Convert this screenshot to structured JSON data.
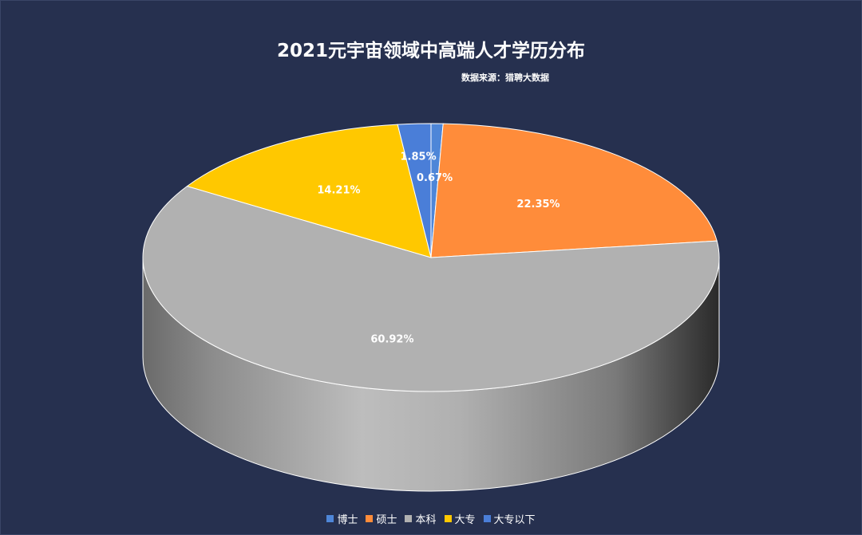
{
  "chart_data": {
    "type": "pie",
    "title": "2021元宇宙领域中高端人才学历分布",
    "subtitle": "数据来源：猎聘大数据",
    "categories": [
      "博士",
      "硕士",
      "本科",
      "大专",
      "大专以下"
    ],
    "values": [
      0.67,
      22.35,
      60.92,
      14.21,
      1.85
    ],
    "value_labels": [
      "0.67%",
      "22.35%",
      "60.92%",
      "14.21%",
      "1.85%"
    ],
    "colors": [
      "#4e86d8",
      "#ff8c3a",
      "#b1b1b1",
      "#ffc800",
      "#4a7ed8"
    ],
    "legend_position": "bottom",
    "style": "3d-pie"
  }
}
